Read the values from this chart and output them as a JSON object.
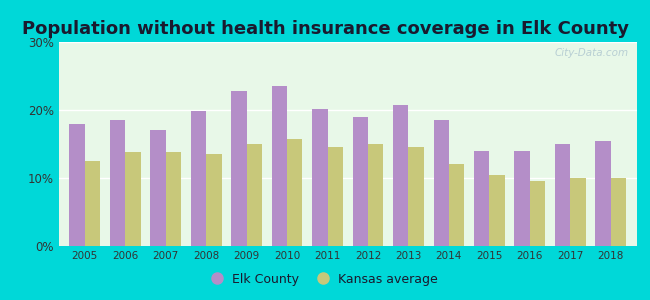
{
  "title": "Population without health insurance coverage in Elk County",
  "years": [
    2005,
    2006,
    2007,
    2008,
    2009,
    2010,
    2011,
    2012,
    2013,
    2014,
    2015,
    2016,
    2017,
    2018
  ],
  "elk_county": [
    18.0,
    18.5,
    17.0,
    19.8,
    22.8,
    23.5,
    20.2,
    19.0,
    20.8,
    18.5,
    14.0,
    14.0,
    15.0,
    15.5
  ],
  "kansas_avg": [
    12.5,
    13.8,
    13.8,
    13.5,
    15.0,
    15.8,
    14.5,
    15.0,
    14.5,
    12.0,
    10.5,
    9.5,
    10.0,
    10.0
  ],
  "elk_color": "#b48ec8",
  "kansas_color": "#c8c87a",
  "background_color": "#e8f8e8",
  "outer_background": "#00d8d8",
  "ylim": [
    0,
    30
  ],
  "yticks": [
    0,
    10,
    20,
    30
  ],
  "ytick_labels": [
    "0%",
    "10%",
    "20%",
    "30%"
  ],
  "legend_elk": "Elk County",
  "legend_kansas": "Kansas average",
  "watermark": "City-Data.com",
  "title_fontsize": 13,
  "title_color": "#1a1a2e",
  "bar_width": 0.38
}
